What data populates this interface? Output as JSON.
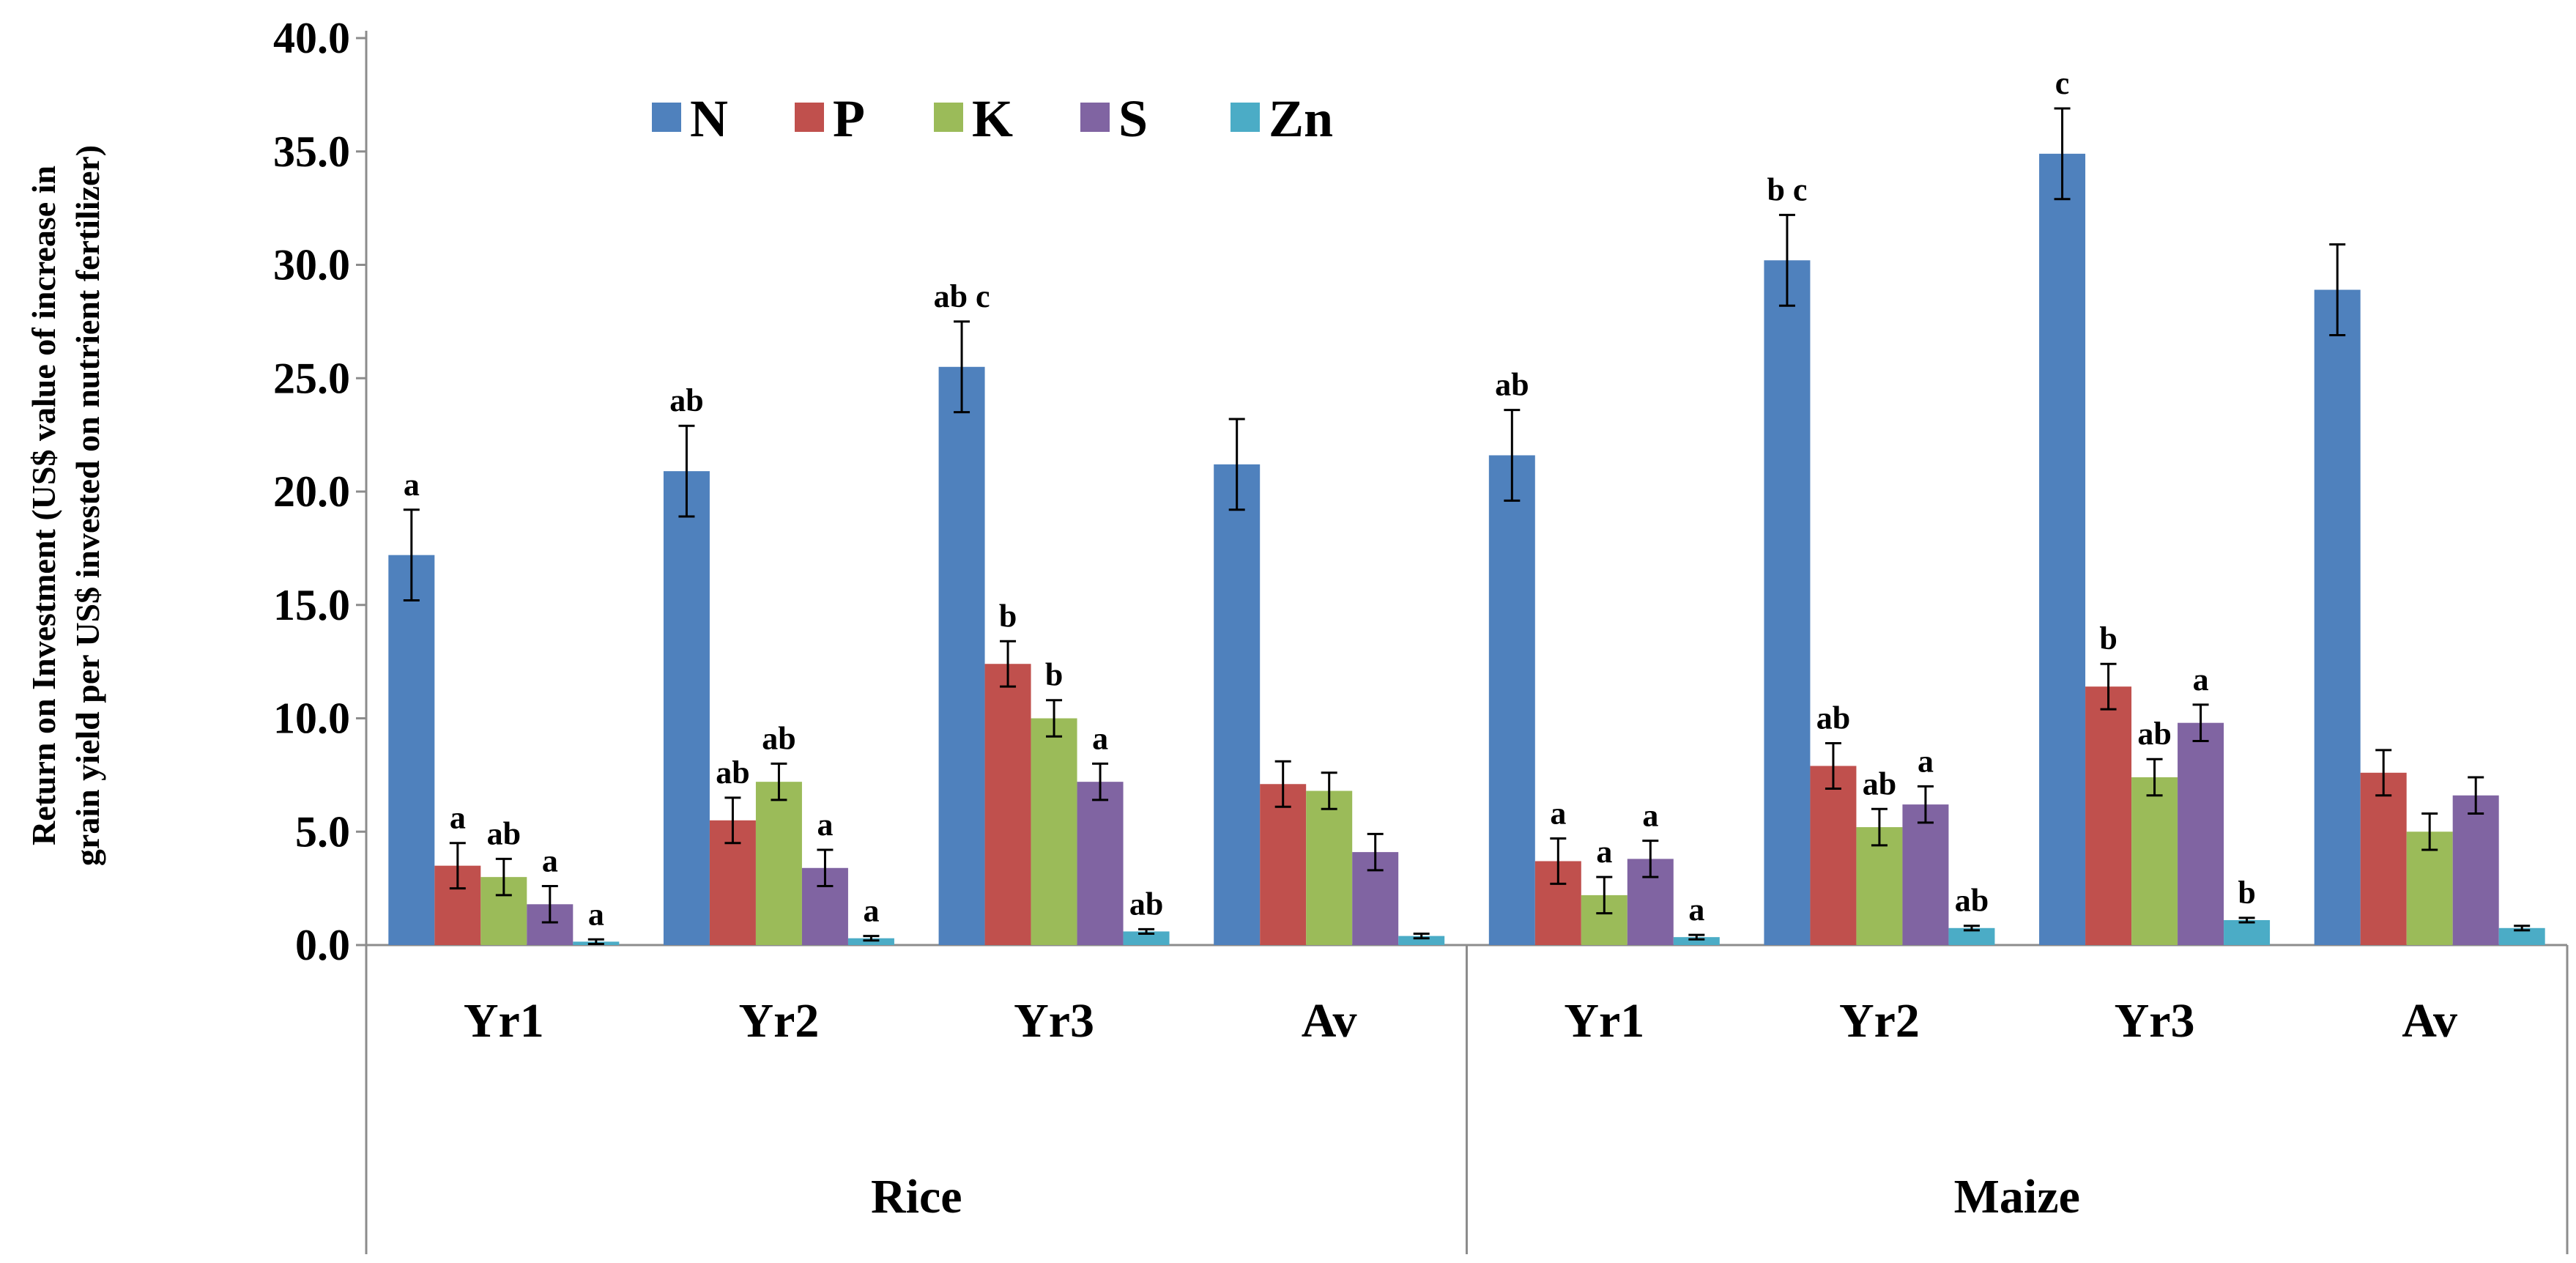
{
  "chart_data": {
    "type": "bar",
    "title": "",
    "ylabel_lines": [
      "Return on Investment (US$ value of  increase in",
      "grain yield per US$ invested on nutrient fertilizer)"
    ],
    "xlabel": "",
    "ylim": [
      0,
      40
    ],
    "yticks": [
      0,
      5,
      10,
      15,
      20,
      25,
      30,
      35,
      40
    ],
    "ytick_labels": [
      "0.0",
      "5.0",
      "10.0",
      "15.0",
      "20.0",
      "25.0",
      "30.0",
      "35.0",
      "40.0"
    ],
    "grid": false,
    "legend_position": "top-left",
    "categories": [
      "Yr1",
      "Yr2",
      "Yr3",
      "Av",
      "Yr1",
      "Yr2",
      "Yr3",
      "Av"
    ],
    "groups": [
      {
        "label": "Rice",
        "categories": [
          "Yr1",
          "Yr2",
          "Yr3",
          "Av"
        ]
      },
      {
        "label": "Maize",
        "categories": [
          "Yr1",
          "Yr2",
          "Yr3",
          "Av"
        ]
      }
    ],
    "series": [
      {
        "name": "N",
        "color": "#4F81BD",
        "values": [
          17.2,
          20.9,
          25.5,
          21.2,
          21.6,
          30.2,
          34.9,
          28.9
        ],
        "errors": [
          2.0,
          2.0,
          2.0,
          2.0,
          2.0,
          2.0,
          2.0,
          2.0
        ],
        "labels": [
          "a",
          "ab",
          "ab c",
          "",
          "ab",
          "b c",
          "c",
          ""
        ]
      },
      {
        "name": "P",
        "color": "#C0504D",
        "values": [
          3.5,
          5.5,
          12.4,
          7.1,
          3.7,
          7.9,
          11.4,
          7.6
        ],
        "errors": [
          1.0,
          1.0,
          1.0,
          1.0,
          1.0,
          1.0,
          1.0,
          1.0
        ],
        "labels": [
          "a",
          "ab",
          "b",
          "",
          "a",
          "ab",
          "b",
          ""
        ]
      },
      {
        "name": "K",
        "color": "#9BBB59",
        "values": [
          3.0,
          7.2,
          10.0,
          6.8,
          2.2,
          5.2,
          7.4,
          5.0
        ],
        "errors": [
          0.8,
          0.8,
          0.8,
          0.8,
          0.8,
          0.8,
          0.8,
          0.8
        ],
        "labels": [
          "ab",
          "ab",
          "b",
          "",
          "a",
          "ab",
          "ab",
          ""
        ]
      },
      {
        "name": "S",
        "color": "#8064A2",
        "values": [
          1.8,
          3.4,
          7.2,
          4.1,
          3.8,
          6.2,
          9.8,
          6.6
        ],
        "errors": [
          0.8,
          0.8,
          0.8,
          0.8,
          0.8,
          0.8,
          0.8,
          0.8
        ],
        "labels": [
          "a",
          "a",
          "a",
          "",
          "a",
          "a",
          "a",
          ""
        ]
      },
      {
        "name": "Zn",
        "color": "#4BACC6",
        "values": [
          0.15,
          0.3,
          0.6,
          0.4,
          0.35,
          0.75,
          1.1,
          0.75
        ],
        "errors": [
          0.1,
          0.1,
          0.1,
          0.1,
          0.1,
          0.1,
          0.1,
          0.1
        ],
        "labels": [
          "a",
          "a",
          "ab",
          "",
          "a",
          "ab",
          "b",
          ""
        ]
      }
    ]
  }
}
